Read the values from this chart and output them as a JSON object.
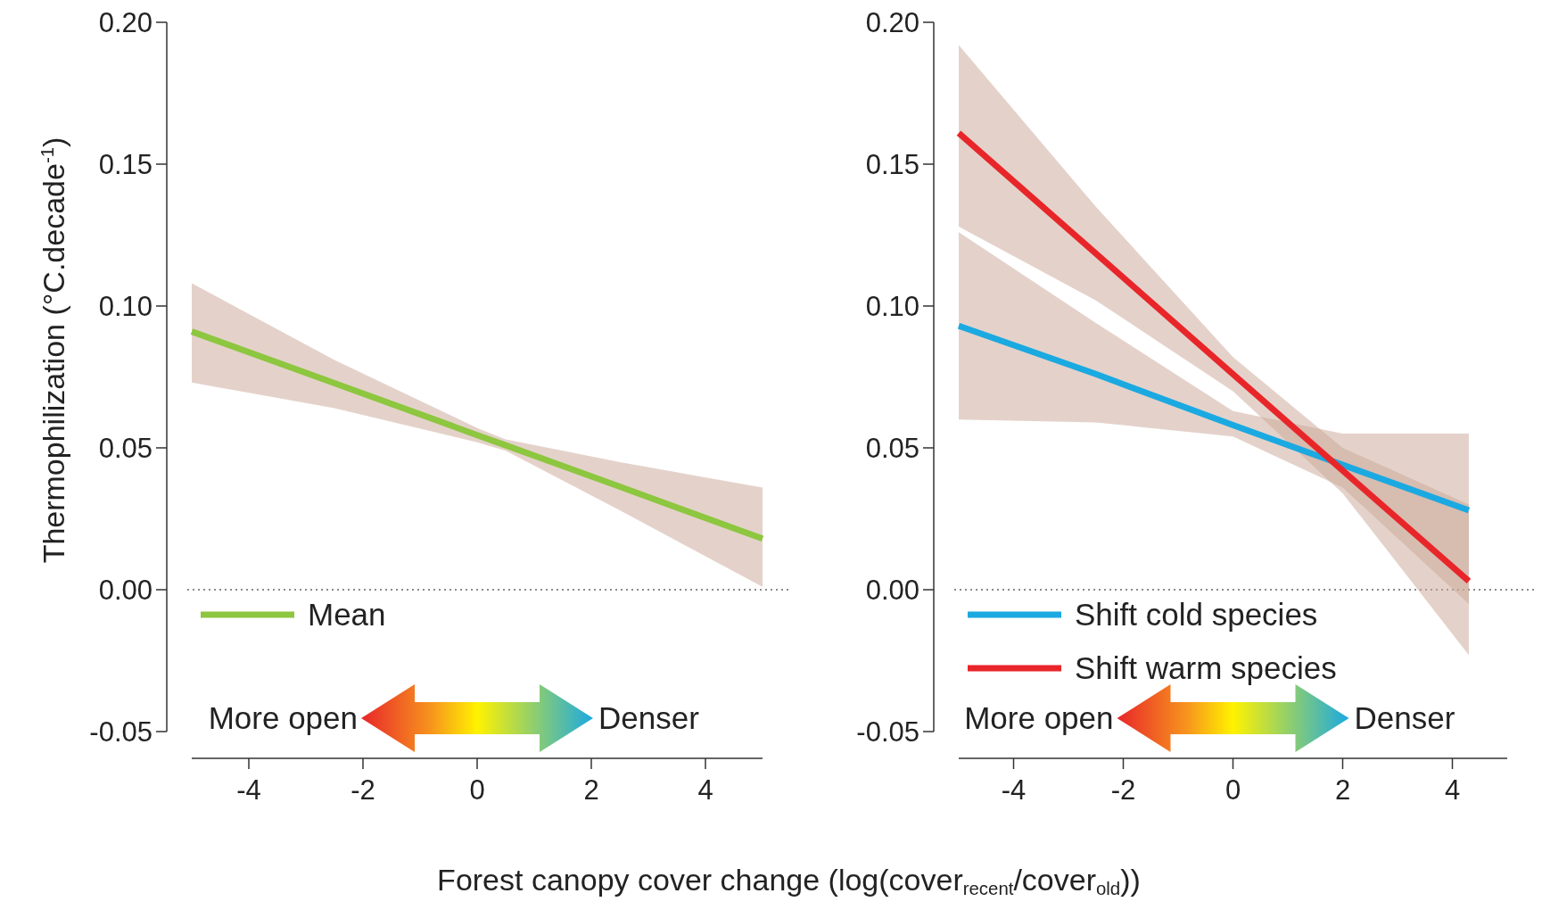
{
  "chart_data": [
    {
      "type": "line",
      "ylabel": "Thermophilization (°C.decade$^{-1}$)",
      "xlabel": "Forest canopy cover change (log(cover$_{recent}$/cover$_{old}$))",
      "xlim": [
        -5,
        5
      ],
      "xticks": [
        -4,
        -2,
        0,
        2,
        4
      ],
      "ylim": [
        -0.05,
        0.2
      ],
      "yticks": [
        {
          "value": -0.05,
          "label": "-0.05"
        },
        {
          "value": 0,
          "label": "0.00"
        },
        {
          "value": 0.05,
          "label": "0.05"
        },
        {
          "value": 0.1,
          "label": "0.10"
        },
        {
          "value": 0.15,
          "label": "0.15"
        },
        {
          "value": 0.2,
          "label": "0.20"
        }
      ],
      "legend": "bottom left",
      "ref_lines": [
        {
          "axis": "y",
          "value": 0,
          "line_style": "dotted",
          "color": "#666666"
        }
      ],
      "annotations": [
        "More open",
        "Denser"
      ],
      "series": [
        {
          "name": "Mean",
          "color": "#8dc63f",
          "x": [
            -5,
            -2.5,
            0,
            0.5,
            2.5,
            5
          ],
          "values": [
            0.091,
            0.0728,
            0.0545,
            0.0509,
            0.0363,
            0.018
          ],
          "lower": [
            0.073,
            0.064,
            0.052,
            0.049,
            0.028,
            0.001
          ],
          "upper": [
            0.108,
            0.081,
            0.057,
            0.053,
            0.045,
            0.036
          ]
        }
      ]
    },
    {
      "type": "line",
      "xlim": [
        -5,
        5
      ],
      "xticks": [
        -4,
        -2,
        0,
        2,
        4
      ],
      "ylim": [
        -0.05,
        0.2
      ],
      "yticks": [
        {
          "value": -0.05,
          "label": "-0.05"
        },
        {
          "value": 0,
          "label": "0.00"
        },
        {
          "value": 0.05,
          "label": "0.05"
        },
        {
          "value": 0.1,
          "label": "0.10"
        },
        {
          "value": 0.15,
          "label": "0.15"
        },
        {
          "value": 0.2,
          "label": "0.20"
        }
      ],
      "legend": "bottom left",
      "ref_lines": [
        {
          "axis": "y",
          "value": 0,
          "line_style": "dotted",
          "color": "#666666"
        }
      ],
      "annotations": [
        "More open",
        "Denser"
      ],
      "series": [
        {
          "name": "Shift cold species",
          "color": "#1ba9e1",
          "x": [
            -5,
            -2.5,
            0,
            2,
            4.3
          ],
          "values": [
            0.093,
            0.076,
            0.058,
            0.044,
            0.028
          ],
          "lower": [
            0.06,
            0.059,
            0.054,
            0.036,
            -0.005
          ],
          "upper": [
            0.126,
            0.094,
            0.063,
            0.055,
            0.055
          ]
        },
        {
          "name": "Shift warm species",
          "color": "#e8262a",
          "x": [
            -5,
            -2.5,
            0,
            2,
            4.3
          ],
          "values": [
            0.161,
            0.1185,
            0.076,
            0.042,
            0.003
          ],
          "lower": [
            0.128,
            0.102,
            0.07,
            0.034,
            -0.023
          ],
          "upper": [
            0.192,
            0.135,
            0.082,
            0.05,
            0.03
          ]
        }
      ]
    }
  ]
}
